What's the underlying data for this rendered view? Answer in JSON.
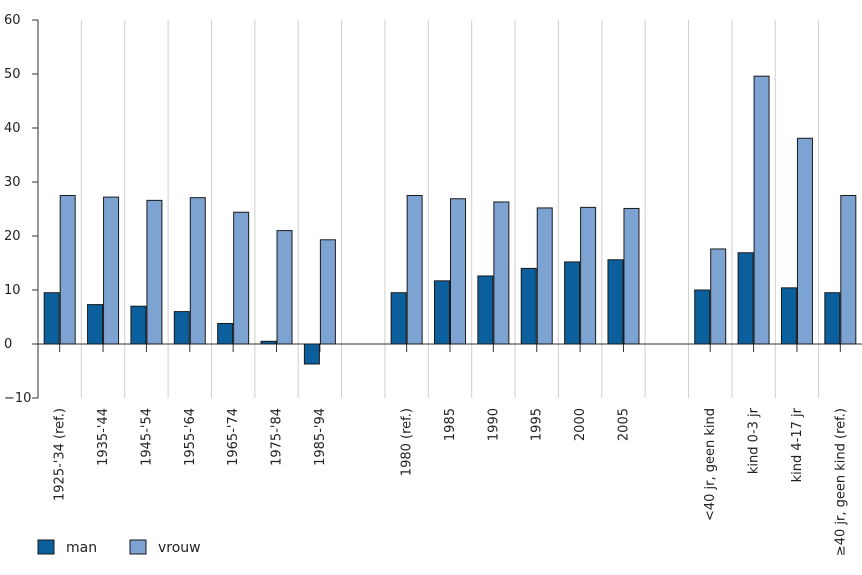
{
  "chart_data": {
    "type": "bar",
    "categories": [
      "1925-'34 (ref.)",
      "1935-'44",
      "1945-'54",
      "1955-'64",
      "1965-'74",
      "1975-'84",
      "1985-'94",
      "",
      "1980 (ref.)",
      "1985",
      "1990",
      "1995",
      "2000",
      "2005",
      "",
      "<40 jr, geen kind",
      "kind 0-3 jr",
      "kind 4-17 jr",
      "≥40 jr, geen kind (ref.)"
    ],
    "series": [
      {
        "name": "man",
        "color": "#0a5f9c",
        "values": [
          9.5,
          7.3,
          7.0,
          6.0,
          3.8,
          0.5,
          -3.7,
          null,
          9.5,
          11.7,
          12.6,
          14.0,
          15.2,
          15.6,
          null,
          10.0,
          16.9,
          10.4,
          9.5
        ]
      },
      {
        "name": "vrouw",
        "color": "#7da3d3",
        "values": [
          27.5,
          27.2,
          26.6,
          27.1,
          24.4,
          21.0,
          19.3,
          null,
          27.5,
          26.9,
          26.3,
          25.2,
          25.3,
          25.1,
          null,
          17.6,
          49.6,
          38.1,
          27.5
        ]
      }
    ],
    "ylim": [
      -10,
      60
    ],
    "yticks": [
      -10,
      0,
      10,
      20,
      30,
      40,
      50,
      60
    ],
    "grid": "vertical",
    "legend": "bottom-left"
  }
}
